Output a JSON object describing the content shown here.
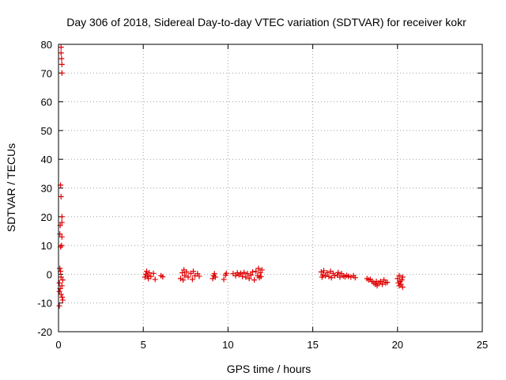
{
  "chart_data": {
    "type": "scatter",
    "title": "Day 306 of 2018, Sidereal Day-to-day VTEC variation (SDTVAR) for receiver kokr",
    "xlabel": "GPS time / hours",
    "ylabel": "SDTVAR / TECUs",
    "xlim": [
      0,
      25
    ],
    "ylim": [
      -20,
      80
    ],
    "xticks": [
      0,
      5,
      10,
      15,
      20,
      25
    ],
    "yticks": [
      -20,
      -10,
      0,
      10,
      20,
      30,
      40,
      50,
      60,
      70,
      80
    ],
    "grid": true,
    "marker": "+",
    "color": "#e00000",
    "series": [
      {
        "name": "SDTVAR",
        "points": [
          [
            0.05,
            -11
          ],
          [
            0.05,
            -6
          ],
          [
            0.05,
            -3
          ],
          [
            0.08,
            2
          ],
          [
            0.08,
            14
          ],
          [
            0.1,
            17
          ],
          [
            0.12,
            31
          ],
          [
            0.12,
            9.5
          ],
          [
            0.15,
            27
          ],
          [
            0.15,
            77
          ],
          [
            0.15,
            79
          ],
          [
            0.18,
            75
          ],
          [
            0.2,
            73
          ],
          [
            0.2,
            70
          ],
          [
            0.2,
            20
          ],
          [
            0.2,
            18
          ],
          [
            0.2,
            13
          ],
          [
            0.18,
            10
          ],
          [
            0.15,
            -1
          ],
          [
            0.2,
            -4
          ],
          [
            0.22,
            -8
          ],
          [
            0.25,
            -9
          ],
          [
            0.25,
            -2
          ],
          [
            0.15,
            -7
          ],
          [
            0.12,
            1
          ],
          [
            0.1,
            -5
          ],
          [
            5.1,
            -1
          ],
          [
            5.15,
            0
          ],
          [
            5.2,
            1
          ],
          [
            5.25,
            -0.5
          ],
          [
            5.3,
            -1.5
          ],
          [
            5.35,
            0.5
          ],
          [
            5.45,
            -0.8
          ],
          [
            5.6,
            0.3
          ],
          [
            5.7,
            -1.8
          ],
          [
            6.05,
            -0.5
          ],
          [
            6.15,
            -0.9
          ],
          [
            7.2,
            -1.5
          ],
          [
            7.3,
            0.5
          ],
          [
            7.35,
            -2
          ],
          [
            7.4,
            1.5
          ],
          [
            7.45,
            -0.5
          ],
          [
            7.55,
            0.8
          ],
          [
            7.65,
            -1
          ],
          [
            7.8,
            0.3
          ],
          [
            7.9,
            -1.8
          ],
          [
            7.95,
            1
          ],
          [
            8.05,
            -0.5
          ],
          [
            8.2,
            0.2
          ],
          [
            8.3,
            -0.7
          ],
          [
            9.1,
            -1.5
          ],
          [
            9.15,
            -0.5
          ],
          [
            9.2,
            0.2
          ],
          [
            9.25,
            -1
          ],
          [
            9.75,
            -1.8
          ],
          [
            9.85,
            -0.3
          ],
          [
            9.9,
            0.3
          ],
          [
            10.3,
            0.2
          ],
          [
            10.45,
            -0.5
          ],
          [
            10.55,
            0.5
          ],
          [
            10.65,
            -0.2
          ],
          [
            10.75,
            0.3
          ],
          [
            10.85,
            -0.8
          ],
          [
            10.95,
            0.6
          ],
          [
            11.05,
            -1
          ],
          [
            11.15,
            0.2
          ],
          [
            11.25,
            -1.5
          ],
          [
            11.35,
            -0.3
          ],
          [
            11.45,
            0.8
          ],
          [
            11.55,
            -2
          ],
          [
            11.65,
            1
          ],
          [
            11.75,
            -0.5
          ],
          [
            11.8,
            2
          ],
          [
            11.85,
            -1.2
          ],
          [
            11.9,
            0.5
          ],
          [
            11.95,
            -0.8
          ],
          [
            12.0,
            1.5
          ],
          [
            15.5,
            0.8
          ],
          [
            15.55,
            -1
          ],
          [
            15.6,
            -0.3
          ],
          [
            15.65,
            1.2
          ],
          [
            15.75,
            -0.5
          ],
          [
            15.85,
            0.5
          ],
          [
            15.95,
            -0.8
          ],
          [
            16.05,
            1
          ],
          [
            16.1,
            -1.2
          ],
          [
            16.2,
            0.3
          ],
          [
            16.3,
            -0.5
          ],
          [
            16.45,
            -0.3
          ],
          [
            16.5,
            0.6
          ],
          [
            16.6,
            -1
          ],
          [
            16.7,
            0.2
          ],
          [
            16.8,
            -0.6
          ],
          [
            16.9,
            -0.9
          ],
          [
            17.0,
            -0.4
          ],
          [
            17.1,
            -0.7
          ],
          [
            17.25,
            -1
          ],
          [
            17.4,
            -0.5
          ],
          [
            17.5,
            -1.2
          ],
          [
            18.2,
            -1.5
          ],
          [
            18.3,
            -2
          ],
          [
            18.4,
            -1.8
          ],
          [
            18.5,
            -2.5
          ],
          [
            18.6,
            -3
          ],
          [
            18.7,
            -3.5
          ],
          [
            18.75,
            -2.5
          ],
          [
            18.8,
            -4
          ],
          [
            18.9,
            -3
          ],
          [
            19.0,
            -2.5
          ],
          [
            19.1,
            -3.5
          ],
          [
            19.2,
            -2
          ],
          [
            19.3,
            -3
          ],
          [
            19.4,
            -2.8
          ],
          [
            20.0,
            -1.5
          ],
          [
            20.05,
            -3
          ],
          [
            20.1,
            -0.5
          ],
          [
            20.1,
            -4
          ],
          [
            20.15,
            -2.5
          ],
          [
            20.2,
            -3.5
          ],
          [
            20.25,
            -2
          ],
          [
            20.3,
            -4.5
          ],
          [
            20.3,
            -1
          ]
        ]
      }
    ]
  }
}
